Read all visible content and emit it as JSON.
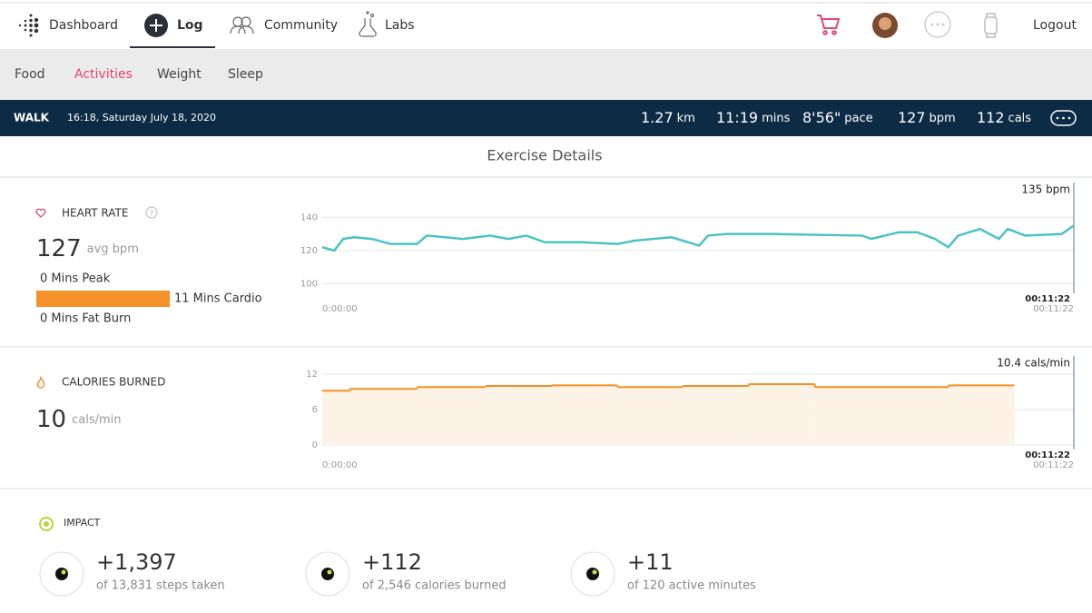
{
  "nav": {
    "items": [
      "Dashboard",
      "Log",
      "Community",
      "Labs"
    ],
    "logout": "Logout"
  },
  "subnav": [
    "Food",
    "Activities",
    "Weight",
    "Sleep"
  ],
  "summary": {
    "activity": "WALK",
    "datetime": "16:18, Saturday July 18, 2020",
    "stats": [
      {
        "value": "1.27",
        "unit": "km"
      },
      {
        "value": "11:19",
        "unit": "mins"
      },
      {
        "value": "8'56\"",
        "unit": "pace"
      },
      {
        "value": "127",
        "unit": "bpm"
      },
      {
        "value": "112",
        "unit": "cals"
      }
    ]
  },
  "section_title": "Exercise Details",
  "heart_rate": {
    "title": "HEART RATE",
    "avg": "127",
    "avg_unit": "avg bpm",
    "zones": [
      {
        "minutes": 0,
        "label": "0 Mins Peak"
      },
      {
        "minutes": 11,
        "label": "11 Mins Cardio"
      },
      {
        "minutes": 0,
        "label": "0 Mins Fat Burn"
      }
    ],
    "chart": {
      "type": "line",
      "color": "#4cc2c4",
      "x": [
        0,
        11,
        19,
        29,
        45,
        62,
        86,
        95,
        128,
        152,
        169,
        185,
        202,
        235,
        268,
        284,
        317,
        342,
        350,
        367,
        408,
        490,
        498,
        523,
        540,
        556,
        568,
        577,
        597,
        614,
        622,
        638,
        671,
        682
      ],
      "values": [
        122,
        120,
        127,
        128,
        127,
        124,
        124,
        129,
        127,
        129,
        127,
        129,
        125,
        125,
        124,
        126,
        128,
        123,
        129,
        130,
        130,
        129,
        127,
        131,
        131,
        127,
        122,
        129,
        133,
        127,
        133,
        129,
        130,
        135
      ],
      "xlim": [
        0,
        682
      ],
      "xticks": [
        {
          "value": 0,
          "label": "0:00:00"
        },
        {
          "value": 682,
          "label": "00:11:22"
        }
      ],
      "ylim": [
        97,
        150
      ],
      "yticks": [
        100,
        120,
        140
      ],
      "grid": true,
      "cursor_time": "00:11:22",
      "cursor_label": "135 bpm"
    }
  },
  "calories": {
    "title": "CALORIES BURNED",
    "avg": "10",
    "avg_unit": "cals/min",
    "chart": {
      "type": "step",
      "color": "#f5902a",
      "fill": "#fdf2e6",
      "bins": [
        0,
        25,
        86,
        148,
        208,
        268,
        327,
        387,
        447,
        568,
        628
      ],
      "values": [
        9.2,
        9.5,
        9.8,
        10.0,
        10.1,
        9.8,
        10.0,
        10.3,
        9.8,
        10.1
      ],
      "xlim": [
        0,
        682
      ],
      "xticks": [
        {
          "value": 0,
          "label": "0:00:00"
        },
        {
          "value": 682,
          "label": "00:11:22"
        }
      ],
      "ylim": [
        0,
        12
      ],
      "yticks": [
        0,
        6,
        12
      ],
      "grid": true,
      "cursor_time": "00:11:22",
      "cursor_label": "10.4 cals/min"
    }
  },
  "impact": {
    "title": "IMPACT",
    "items": [
      {
        "value": "+1,397",
        "detail": "of 13,831 steps taken"
      },
      {
        "value": "+112",
        "detail": "of 2,546 calories burned"
      },
      {
        "value": "+11",
        "detail": "of 120 active minutes"
      }
    ]
  }
}
